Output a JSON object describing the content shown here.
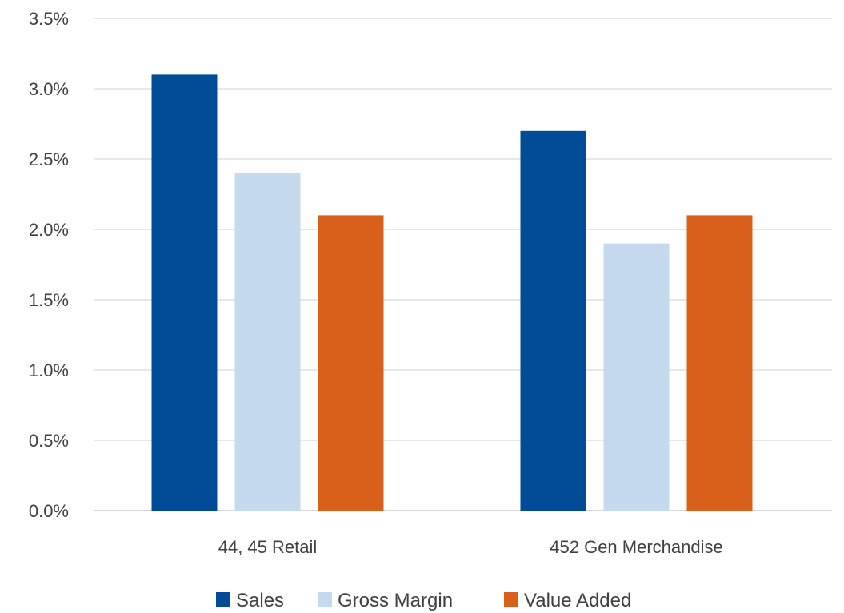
{
  "chart_data": {
    "type": "bar",
    "categories": [
      "44, 45 Retail",
      "452 Gen Merchandise"
    ],
    "series": [
      {
        "name": "Sales",
        "values": [
          3.1,
          2.7
        ],
        "color": "#004C97"
      },
      {
        "name": "Gross Margin",
        "values": [
          2.4,
          1.9
        ],
        "color": "#C5D9EF"
      },
      {
        "name": "Value Added",
        "values": [
          2.1,
          2.1
        ],
        "color": "#D9601A"
      }
    ],
    "yticks": [
      "0.0%",
      "0.5%",
      "1.0%",
      "1.5%",
      "2.0%",
      "2.5%",
      "3.0%",
      "3.5%"
    ],
    "ylim": [
      0,
      3.5
    ],
    "grid": true,
    "legend_position": "bottom",
    "title": "",
    "xlabel": "",
    "ylabel": ""
  }
}
